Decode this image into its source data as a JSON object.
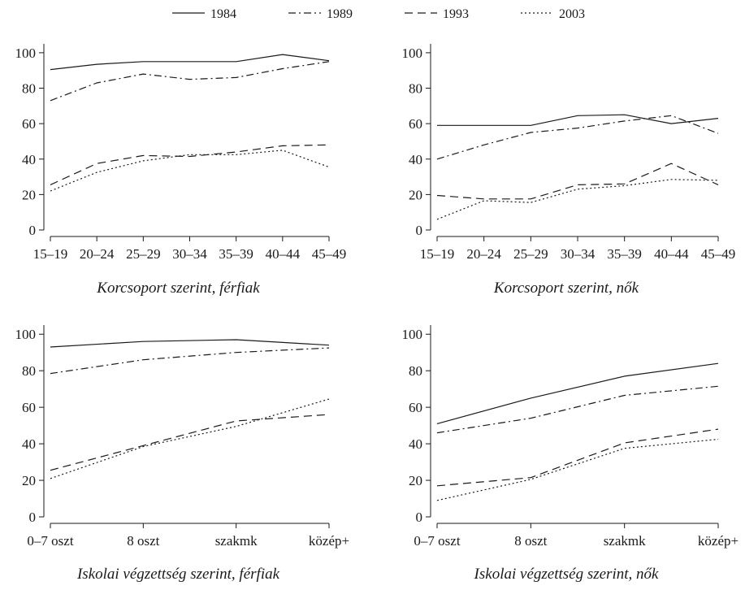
{
  "legend": {
    "items": [
      {
        "label": "1984",
        "dash": "solid"
      },
      {
        "label": "1989",
        "dash": "dashdot"
      },
      {
        "label": "1993",
        "dash": "dashed"
      },
      {
        "label": "2003",
        "dash": "dotted"
      }
    ]
  },
  "chart_data": [
    {
      "type": "line",
      "title": "Korcsoport szerint, férfiak",
      "categories": [
        "15–19",
        "20–24",
        "25–29",
        "30–34",
        "35–39",
        "40–44",
        "45–49"
      ],
      "ylim": [
        0,
        105
      ],
      "yticks": [
        0,
        20,
        40,
        60,
        80,
        100
      ],
      "grid": false,
      "series": [
        {
          "name": "1984",
          "values": [
            90.5,
            93.5,
            95,
            95,
            95,
            99,
            95.5
          ]
        },
        {
          "name": "1989",
          "values": [
            73,
            83,
            88,
            85,
            86,
            91,
            95
          ]
        },
        {
          "name": "1993",
          "values": [
            25.5,
            37.5,
            42,
            41.5,
            44,
            47.5,
            48
          ]
        },
        {
          "name": "2003",
          "values": [
            22,
            32.5,
            39,
            42.5,
            42.5,
            45,
            35.5
          ]
        }
      ]
    },
    {
      "type": "line",
      "title": "Korcsoport szerint, nők",
      "categories": [
        "15–19",
        "20–24",
        "25–29",
        "30–34",
        "35–39",
        "40–44",
        "45–49"
      ],
      "ylim": [
        0,
        105
      ],
      "yticks": [
        0,
        20,
        40,
        60,
        80,
        100
      ],
      "grid": false,
      "series": [
        {
          "name": "1984",
          "values": [
            59,
            59,
            59,
            64.5,
            65,
            60,
            63
          ]
        },
        {
          "name": "1989",
          "values": [
            40,
            48,
            55,
            57.5,
            61.5,
            64.5,
            54.5
          ]
        },
        {
          "name": "1993",
          "values": [
            19.5,
            17.5,
            17.5,
            25.5,
            26,
            37.5,
            25.5
          ]
        },
        {
          "name": "2003",
          "values": [
            6,
            16.5,
            15.5,
            23,
            25,
            28.5,
            28
          ]
        }
      ]
    },
    {
      "type": "line",
      "title": "Iskolai végzettség szerint, férfiak",
      "categories": [
        "0–7 oszt",
        "8 oszt",
        "szakmk",
        "közép+"
      ],
      "ylim": [
        0,
        105
      ],
      "yticks": [
        0,
        20,
        40,
        60,
        80,
        100
      ],
      "grid": false,
      "series": [
        {
          "name": "1984",
          "values": [
            93,
            96,
            97,
            94
          ]
        },
        {
          "name": "1989",
          "values": [
            78.5,
            86,
            90,
            92.5
          ]
        },
        {
          "name": "1993",
          "values": [
            25.5,
            39,
            52.5,
            56
          ]
        },
        {
          "name": "2003",
          "values": [
            21,
            38.5,
            49.5,
            64.5
          ]
        }
      ]
    },
    {
      "type": "line",
      "title": "Iskolai végzettség szerint, nők",
      "categories": [
        "0–7 oszt",
        "8 oszt",
        "szakmk",
        "közép+"
      ],
      "ylim": [
        0,
        105
      ],
      "yticks": [
        0,
        20,
        40,
        60,
        80,
        100
      ],
      "grid": false,
      "series": [
        {
          "name": "1984",
          "values": [
            51,
            65,
            77,
            84
          ]
        },
        {
          "name": "1989",
          "values": [
            46,
            54,
            66.5,
            71.5
          ]
        },
        {
          "name": "1993",
          "values": [
            17,
            21.5,
            40.5,
            48
          ]
        },
        {
          "name": "2003",
          "values": [
            9,
            20.5,
            37.5,
            42.5
          ]
        }
      ]
    }
  ]
}
